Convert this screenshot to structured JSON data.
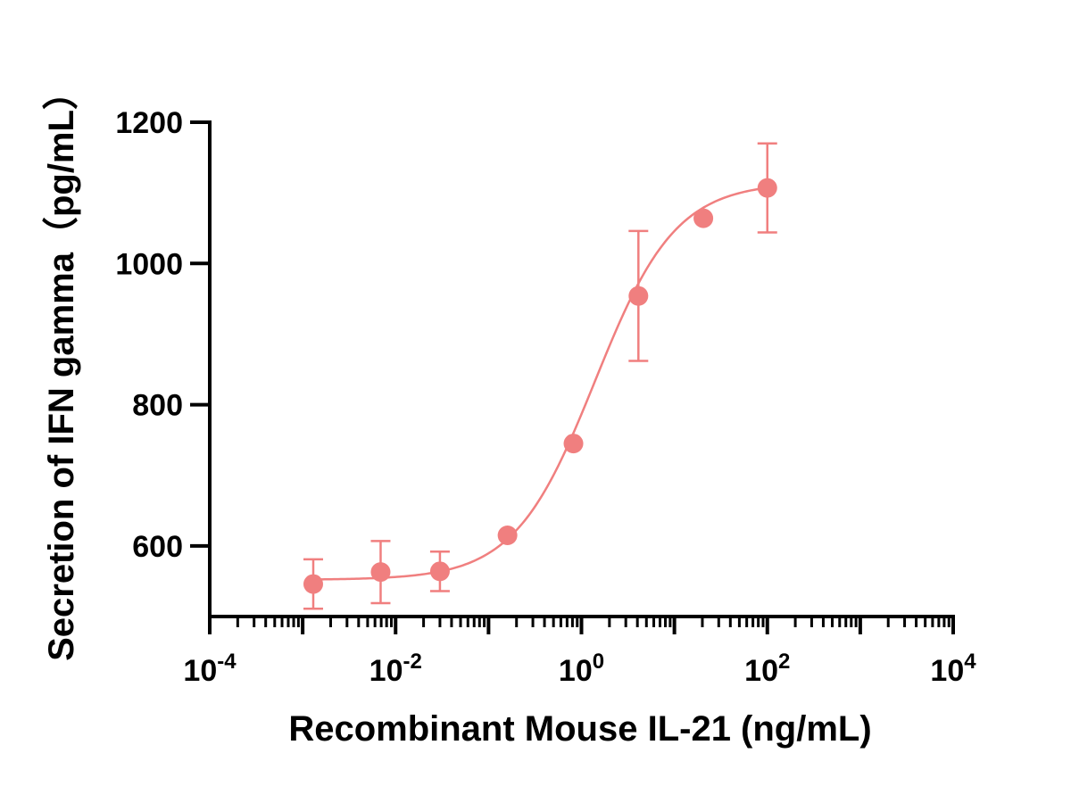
{
  "chart_data": {
    "type": "scatter",
    "title": "",
    "xlabel": "Recombinant Mouse  IL-21 (ng/mL)",
    "ylabel": "Secretion of IFN gamma（pg/mL）",
    "xscale": "log10",
    "xlim": [
      0.0001,
      10000
    ],
    "ylim": [
      500,
      1200
    ],
    "x_ticks": [
      {
        "base": "10",
        "exp": "-4",
        "value": 0.0001
      },
      {
        "base": "10",
        "exp": "-2",
        "value": 0.01
      },
      {
        "base": "10",
        "exp": "0",
        "value": 1
      },
      {
        "base": "10",
        "exp": "2",
        "value": 100
      },
      {
        "base": "10",
        "exp": "4",
        "value": 10000
      }
    ],
    "y_ticks": [
      "600",
      "800",
      "1000",
      "1200"
    ],
    "y_tick_values": [
      600,
      800,
      1000,
      1200
    ],
    "series": [
      {
        "name": "IFN gamma",
        "color": "#f07f7f",
        "x": [
          0.0013,
          0.0069,
          0.03,
          0.16,
          0.82,
          4.1,
          20.5,
          100
        ],
        "y": [
          546,
          563,
          564,
          615,
          745,
          954,
          1064,
          1107
        ],
        "err": [
          35,
          44,
          28,
          0,
          0,
          92,
          0,
          63
        ]
      }
    ],
    "fit": {
      "model": "4PL",
      "bottom": 552,
      "top": 1115,
      "ec50": 1.4,
      "hill": 1.0
    },
    "grid": false,
    "legend": "none"
  }
}
